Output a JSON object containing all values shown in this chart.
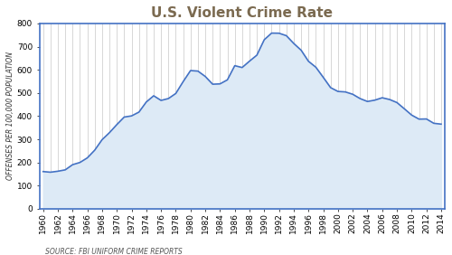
{
  "title": "U.S. Violent Crime Rate",
  "ylabel": "OFFENSES PER 100,000 POPULATION",
  "source_text": "SOURCE: FBI UNIFORM CRIME REPORTS",
  "years": [
    1960,
    1961,
    1962,
    1963,
    1964,
    1965,
    1966,
    1967,
    1968,
    1969,
    1970,
    1971,
    1972,
    1973,
    1974,
    1975,
    1976,
    1977,
    1978,
    1979,
    1980,
    1981,
    1982,
    1983,
    1984,
    1985,
    1986,
    1987,
    1988,
    1989,
    1990,
    1991,
    1992,
    1993,
    1994,
    1995,
    1996,
    1997,
    1998,
    1999,
    2000,
    2001,
    2002,
    2003,
    2004,
    2005,
    2006,
    2007,
    2008,
    2009,
    2010,
    2011,
    2012,
    2013,
    2014
  ],
  "values": [
    160.9,
    158.1,
    162.3,
    168.2,
    190.6,
    200.2,
    220.0,
    253.2,
    298.4,
    328.7,
    363.5,
    396.0,
    401.0,
    417.4,
    461.1,
    487.8,
    467.8,
    475.9,
    497.8,
    548.9,
    596.6,
    594.3,
    571.1,
    537.7,
    539.2,
    556.6,
    617.7,
    609.7,
    637.2,
    663.1,
    729.6,
    758.2,
    757.7,
    747.1,
    713.6,
    684.5,
    636.6,
    611.0,
    567.6,
    523.0,
    506.5,
    504.5,
    494.4,
    475.8,
    463.2,
    469.0,
    479.3,
    471.8,
    458.6,
    431.9,
    404.5,
    387.1,
    387.8,
    369.1,
    365.5
  ],
  "ylim": [
    0,
    800
  ],
  "yticks": [
    0,
    100,
    200,
    300,
    400,
    500,
    600,
    700,
    800
  ],
  "line_color": "#4472C4",
  "fill_color": "#DDEAF6",
  "grid_color": "#C8C8C8",
  "plot_bg_color": "#FFFFFF",
  "fig_bg_color": "#FFFFFF",
  "border_color": "#4472C4",
  "title_color": "#7B6A50",
  "title_fontsize": 11,
  "ylabel_fontsize": 5.5,
  "tick_fontsize": 6.5,
  "source_fontsize": 5.5,
  "left_bar_color": "#4472C4"
}
